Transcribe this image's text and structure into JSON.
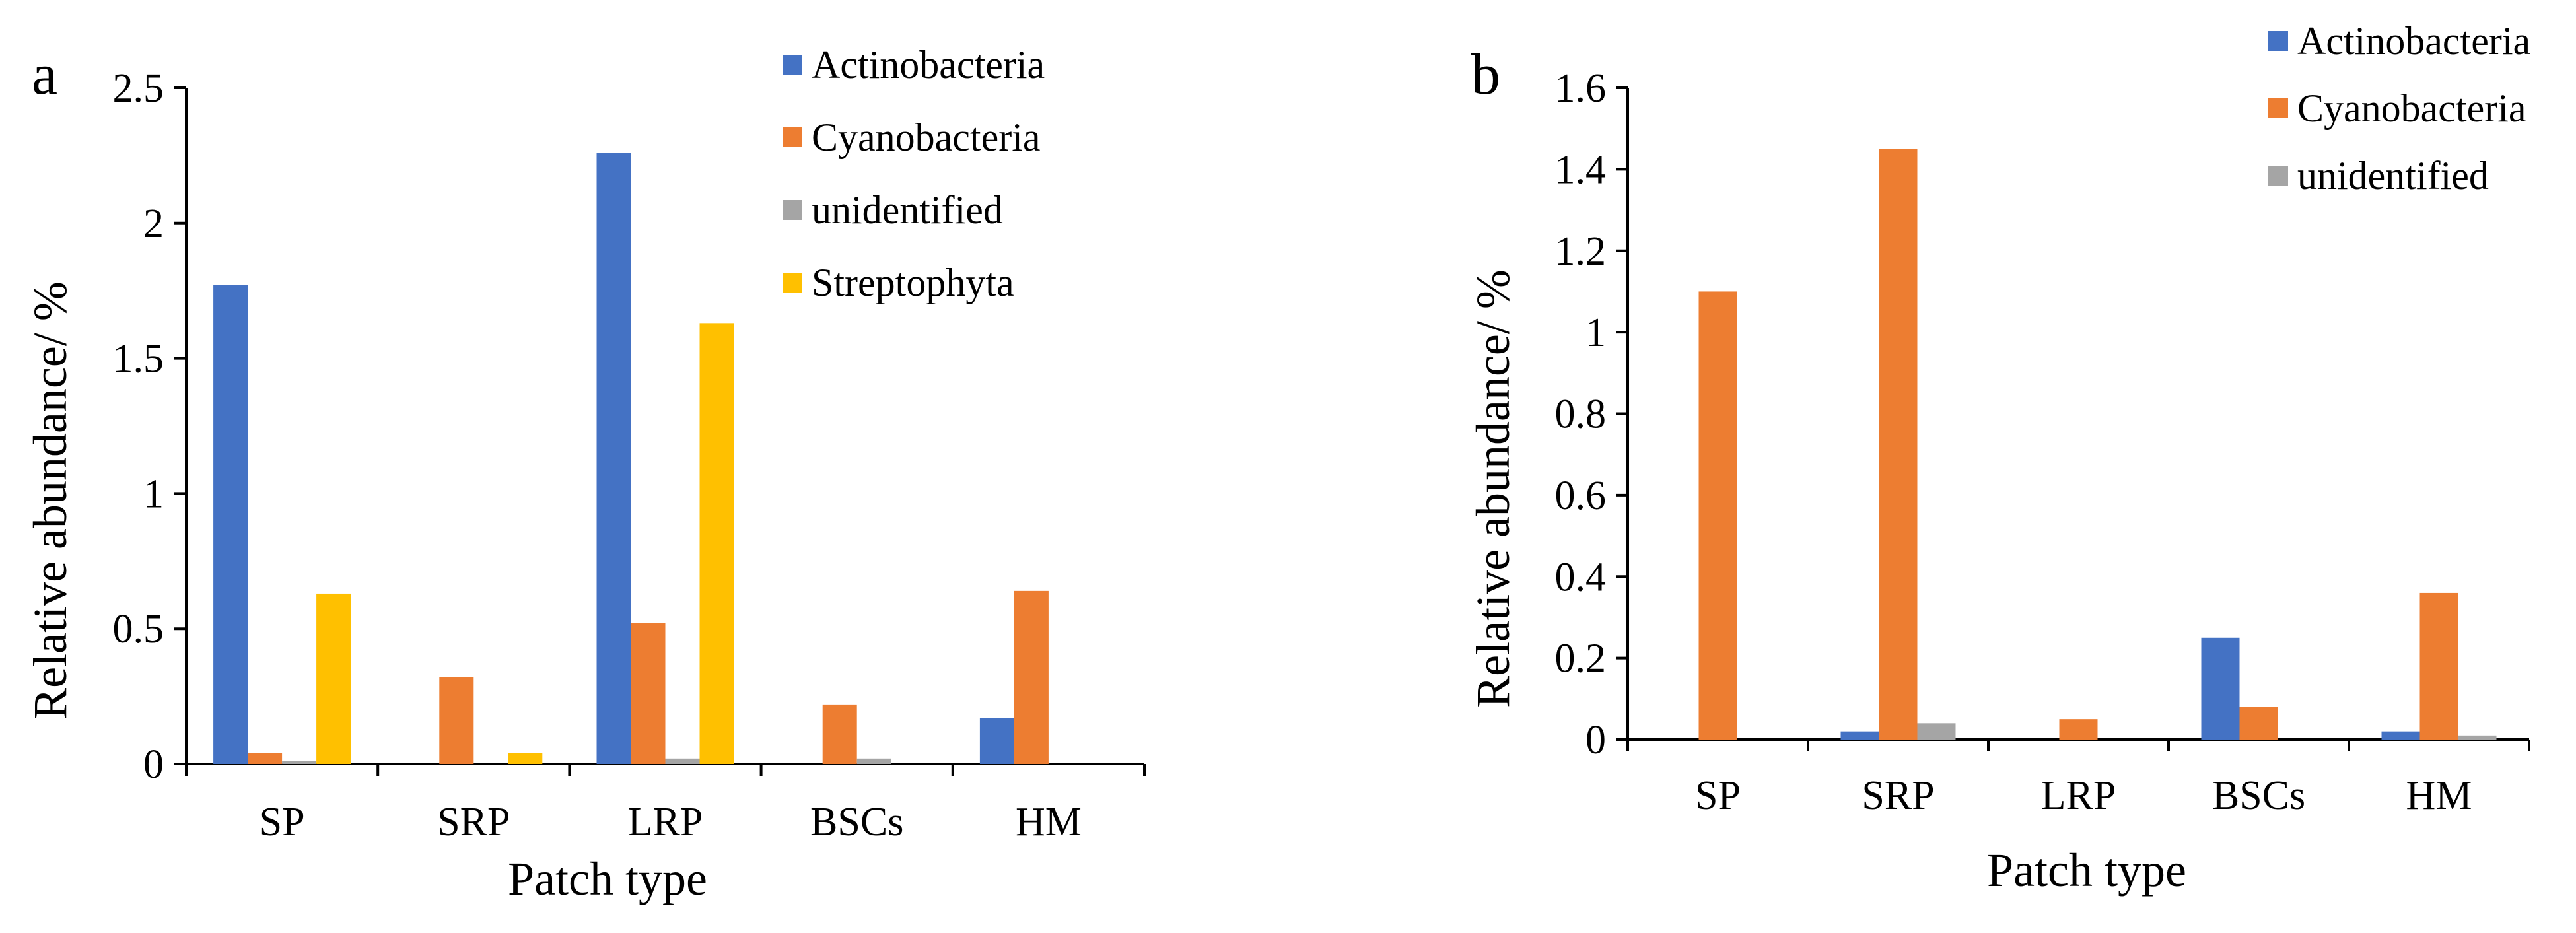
{
  "chart_data": [
    {
      "type": "bar",
      "panel_label": "a",
      "categories": [
        "SP",
        "SRP",
        "LRP",
        "BSCs",
        "HM"
      ],
      "series": [
        {
          "name": "Actinobacteria",
          "color": "#4472c4",
          "values": [
            1.77,
            0,
            2.26,
            0,
            0.17
          ]
        },
        {
          "name": "Cyanobacteria",
          "color": "#ed7d31",
          "values": [
            0.04,
            0.32,
            0.52,
            0.22,
            0.64
          ]
        },
        {
          "name": "unidentified",
          "color": "#a5a5a5",
          "values": [
            0.01,
            0,
            0.02,
            0.02,
            0
          ]
        },
        {
          "name": "Streptophyta",
          "color": "#ffc000",
          "values": [
            0.63,
            0.04,
            1.63,
            0,
            0
          ]
        }
      ],
      "xlabel": "Patch type",
      "ylabel": "Relative abundance/ %",
      "ylim": [
        0,
        2.5
      ],
      "yticks": [
        "0",
        "0.5",
        "1",
        "1.5",
        "2",
        "2.5"
      ],
      "legend": "top-right",
      "grid": false
    },
    {
      "type": "bar",
      "panel_label": "b",
      "categories": [
        "SP",
        "SRP",
        "LRP",
        "BSCs",
        "HM"
      ],
      "series": [
        {
          "name": "Actinobacteria",
          "color": "#4472c4",
          "values": [
            0,
            0.02,
            0,
            0.25,
            0.02
          ]
        },
        {
          "name": "Cyanobacteria",
          "color": "#ed7d31",
          "values": [
            1.1,
            1.45,
            0.05,
            0.08,
            0.36
          ]
        },
        {
          "name": "unidentified",
          "color": "#a5a5a5",
          "values": [
            0,
            0.04,
            0,
            0,
            0.01
          ]
        }
      ],
      "xlabel": "Patch type",
      "ylabel": "Relative abundance/ %",
      "ylim": [
        0,
        1.6
      ],
      "yticks": [
        "0",
        "0.2",
        "0.4",
        "0.6",
        "0.8",
        "1",
        "1.2",
        "1.4",
        "1.6"
      ],
      "legend": "top-right",
      "grid": false
    }
  ]
}
